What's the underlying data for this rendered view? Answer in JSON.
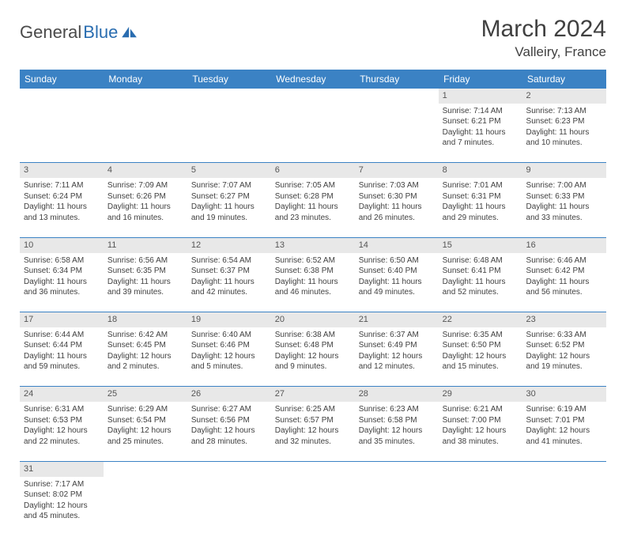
{
  "brand": {
    "part1": "General",
    "part2": "Blue"
  },
  "title": "March 2024",
  "location": "Valleiry, France",
  "weekdays": [
    "Sunday",
    "Monday",
    "Tuesday",
    "Wednesday",
    "Thursday",
    "Friday",
    "Saturday"
  ],
  "colors": {
    "headerBg": "#3b82c4",
    "headerText": "#ffffff",
    "dayNumBg": "#e8e8e8",
    "border": "#3b82c4",
    "bodyText": "#404040",
    "logoBlue": "#2a6db0"
  },
  "weeks": [
    [
      null,
      null,
      null,
      null,
      null,
      {
        "n": "1",
        "sr": "Sunrise: 7:14 AM",
        "ss": "Sunset: 6:21 PM",
        "d1": "Daylight: 11 hours",
        "d2": "and 7 minutes."
      },
      {
        "n": "2",
        "sr": "Sunrise: 7:13 AM",
        "ss": "Sunset: 6:23 PM",
        "d1": "Daylight: 11 hours",
        "d2": "and 10 minutes."
      }
    ],
    [
      {
        "n": "3",
        "sr": "Sunrise: 7:11 AM",
        "ss": "Sunset: 6:24 PM",
        "d1": "Daylight: 11 hours",
        "d2": "and 13 minutes."
      },
      {
        "n": "4",
        "sr": "Sunrise: 7:09 AM",
        "ss": "Sunset: 6:26 PM",
        "d1": "Daylight: 11 hours",
        "d2": "and 16 minutes."
      },
      {
        "n": "5",
        "sr": "Sunrise: 7:07 AM",
        "ss": "Sunset: 6:27 PM",
        "d1": "Daylight: 11 hours",
        "d2": "and 19 minutes."
      },
      {
        "n": "6",
        "sr": "Sunrise: 7:05 AM",
        "ss": "Sunset: 6:28 PM",
        "d1": "Daylight: 11 hours",
        "d2": "and 23 minutes."
      },
      {
        "n": "7",
        "sr": "Sunrise: 7:03 AM",
        "ss": "Sunset: 6:30 PM",
        "d1": "Daylight: 11 hours",
        "d2": "and 26 minutes."
      },
      {
        "n": "8",
        "sr": "Sunrise: 7:01 AM",
        "ss": "Sunset: 6:31 PM",
        "d1": "Daylight: 11 hours",
        "d2": "and 29 minutes."
      },
      {
        "n": "9",
        "sr": "Sunrise: 7:00 AM",
        "ss": "Sunset: 6:33 PM",
        "d1": "Daylight: 11 hours",
        "d2": "and 33 minutes."
      }
    ],
    [
      {
        "n": "10",
        "sr": "Sunrise: 6:58 AM",
        "ss": "Sunset: 6:34 PM",
        "d1": "Daylight: 11 hours",
        "d2": "and 36 minutes."
      },
      {
        "n": "11",
        "sr": "Sunrise: 6:56 AM",
        "ss": "Sunset: 6:35 PM",
        "d1": "Daylight: 11 hours",
        "d2": "and 39 minutes."
      },
      {
        "n": "12",
        "sr": "Sunrise: 6:54 AM",
        "ss": "Sunset: 6:37 PM",
        "d1": "Daylight: 11 hours",
        "d2": "and 42 minutes."
      },
      {
        "n": "13",
        "sr": "Sunrise: 6:52 AM",
        "ss": "Sunset: 6:38 PM",
        "d1": "Daylight: 11 hours",
        "d2": "and 46 minutes."
      },
      {
        "n": "14",
        "sr": "Sunrise: 6:50 AM",
        "ss": "Sunset: 6:40 PM",
        "d1": "Daylight: 11 hours",
        "d2": "and 49 minutes."
      },
      {
        "n": "15",
        "sr": "Sunrise: 6:48 AM",
        "ss": "Sunset: 6:41 PM",
        "d1": "Daylight: 11 hours",
        "d2": "and 52 minutes."
      },
      {
        "n": "16",
        "sr": "Sunrise: 6:46 AM",
        "ss": "Sunset: 6:42 PM",
        "d1": "Daylight: 11 hours",
        "d2": "and 56 minutes."
      }
    ],
    [
      {
        "n": "17",
        "sr": "Sunrise: 6:44 AM",
        "ss": "Sunset: 6:44 PM",
        "d1": "Daylight: 11 hours",
        "d2": "and 59 minutes."
      },
      {
        "n": "18",
        "sr": "Sunrise: 6:42 AM",
        "ss": "Sunset: 6:45 PM",
        "d1": "Daylight: 12 hours",
        "d2": "and 2 minutes."
      },
      {
        "n": "19",
        "sr": "Sunrise: 6:40 AM",
        "ss": "Sunset: 6:46 PM",
        "d1": "Daylight: 12 hours",
        "d2": "and 5 minutes."
      },
      {
        "n": "20",
        "sr": "Sunrise: 6:38 AM",
        "ss": "Sunset: 6:48 PM",
        "d1": "Daylight: 12 hours",
        "d2": "and 9 minutes."
      },
      {
        "n": "21",
        "sr": "Sunrise: 6:37 AM",
        "ss": "Sunset: 6:49 PM",
        "d1": "Daylight: 12 hours",
        "d2": "and 12 minutes."
      },
      {
        "n": "22",
        "sr": "Sunrise: 6:35 AM",
        "ss": "Sunset: 6:50 PM",
        "d1": "Daylight: 12 hours",
        "d2": "and 15 minutes."
      },
      {
        "n": "23",
        "sr": "Sunrise: 6:33 AM",
        "ss": "Sunset: 6:52 PM",
        "d1": "Daylight: 12 hours",
        "d2": "and 19 minutes."
      }
    ],
    [
      {
        "n": "24",
        "sr": "Sunrise: 6:31 AM",
        "ss": "Sunset: 6:53 PM",
        "d1": "Daylight: 12 hours",
        "d2": "and 22 minutes."
      },
      {
        "n": "25",
        "sr": "Sunrise: 6:29 AM",
        "ss": "Sunset: 6:54 PM",
        "d1": "Daylight: 12 hours",
        "d2": "and 25 minutes."
      },
      {
        "n": "26",
        "sr": "Sunrise: 6:27 AM",
        "ss": "Sunset: 6:56 PM",
        "d1": "Daylight: 12 hours",
        "d2": "and 28 minutes."
      },
      {
        "n": "27",
        "sr": "Sunrise: 6:25 AM",
        "ss": "Sunset: 6:57 PM",
        "d1": "Daylight: 12 hours",
        "d2": "and 32 minutes."
      },
      {
        "n": "28",
        "sr": "Sunrise: 6:23 AM",
        "ss": "Sunset: 6:58 PM",
        "d1": "Daylight: 12 hours",
        "d2": "and 35 minutes."
      },
      {
        "n": "29",
        "sr": "Sunrise: 6:21 AM",
        "ss": "Sunset: 7:00 PM",
        "d1": "Daylight: 12 hours",
        "d2": "and 38 minutes."
      },
      {
        "n": "30",
        "sr": "Sunrise: 6:19 AM",
        "ss": "Sunset: 7:01 PM",
        "d1": "Daylight: 12 hours",
        "d2": "and 41 minutes."
      }
    ],
    [
      {
        "n": "31",
        "sr": "Sunrise: 7:17 AM",
        "ss": "Sunset: 8:02 PM",
        "d1": "Daylight: 12 hours",
        "d2": "and 45 minutes."
      },
      null,
      null,
      null,
      null,
      null,
      null
    ]
  ]
}
